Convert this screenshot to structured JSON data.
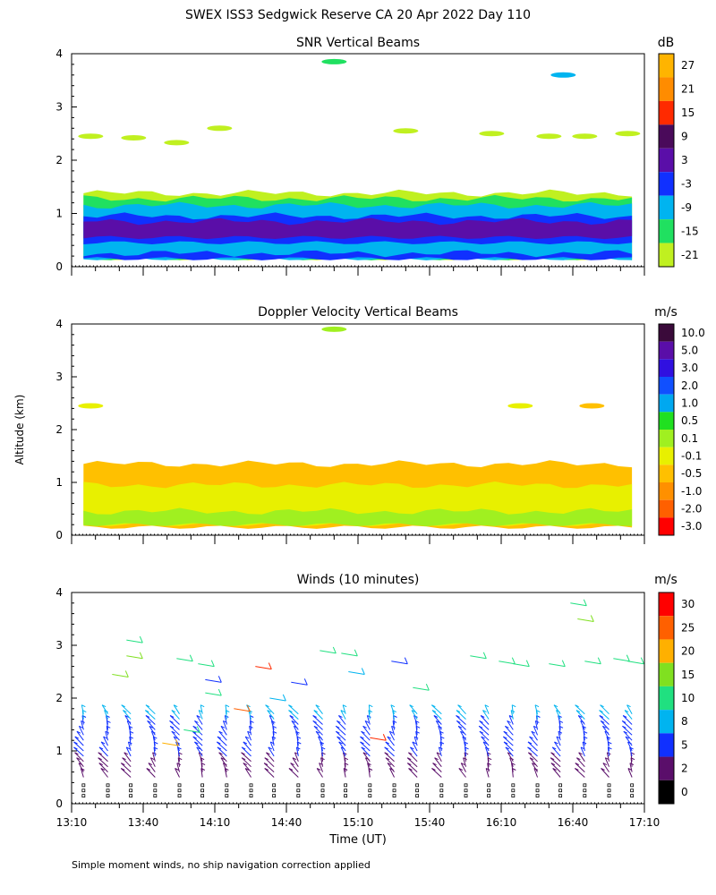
{
  "figure": {
    "title": "SWEX ISS3 Sedgwick Reserve CA  20 Apr 2022 Day 110",
    "ylabel": "Altitude (km)",
    "xlabel": "Time (UT)",
    "footnote": "Simple moment winds, no ship navigation correction applied"
  },
  "chart_data": [
    {
      "type": "heatmap",
      "title": "SNR Vertical Beams",
      "colorbar_unit": "dB",
      "colorbar_ticks": [
        "27",
        "21",
        "15",
        "9",
        "3",
        "-3",
        "-9",
        "-15",
        "-21"
      ],
      "colors": [
        "#ffb400",
        "#ff8c00",
        "#ff2a00",
        "#4a0a5a",
        "#5a0ea8",
        "#1030ff",
        "#00b4f0",
        "#20e060",
        "#c0f020"
      ],
      "xlim": [
        13.1667,
        17.1667
      ],
      "ylim": [
        0,
        4
      ],
      "yticks": [
        0,
        1,
        2,
        3,
        4
      ],
      "xticklabels": [
        "13:10",
        "13:40",
        "14:10",
        "14:40",
        "15:10",
        "15:40",
        "16:10",
        "16:40",
        "17:10"
      ],
      "bands": [
        {
          "y0": 0.15,
          "y1": 1.38,
          "color": "#c0f020"
        },
        {
          "y0": 0.15,
          "y1": 1.28,
          "color": "#20e060"
        },
        {
          "y0": 0.15,
          "y1": 1.15,
          "color": "#00b4f0"
        },
        {
          "y0": 0.45,
          "y1": 0.95,
          "color": "#1030ff"
        },
        {
          "y0": 0.55,
          "y1": 0.85,
          "color": "#5a0ea8"
        },
        {
          "y0": 0.15,
          "y1": 0.25,
          "color": "#1030ff"
        }
      ],
      "patches": [
        {
          "t": 13.3,
          "y": 2.45,
          "color": "#c0f020"
        },
        {
          "t": 13.6,
          "y": 2.42,
          "color": "#c0f020"
        },
        {
          "t": 13.9,
          "y": 2.33,
          "color": "#c0f020"
        },
        {
          "t": 14.2,
          "y": 2.6,
          "color": "#c0f020"
        },
        {
          "t": 15.0,
          "y": 3.85,
          "color": "#20e060"
        },
        {
          "t": 15.5,
          "y": 2.55,
          "color": "#c0f020"
        },
        {
          "t": 16.1,
          "y": 2.5,
          "color": "#c0f020"
        },
        {
          "t": 16.5,
          "y": 2.45,
          "color": "#c0f020"
        },
        {
          "t": 16.75,
          "y": 2.45,
          "color": "#c0f020"
        },
        {
          "t": 17.05,
          "y": 2.5,
          "color": "#c0f020"
        },
        {
          "t": 16.6,
          "y": 3.6,
          "color": "#00b4f0"
        }
      ]
    },
    {
      "type": "heatmap",
      "title": "Doppler Velocity Vertical Beams",
      "colorbar_unit": "m/s",
      "colorbar_ticks": [
        "10.0",
        "5.0",
        "3.0",
        "2.0",
        "1.0",
        "0.5",
        "0.1",
        "-0.1",
        "-0.5",
        "-1.0",
        "-2.0",
        "-3.0"
      ],
      "colors": [
        "#3a0a3a",
        "#5a0ea8",
        "#3010e0",
        "#1050ff",
        "#00a8f0",
        "#20e020",
        "#a0f020",
        "#e8f000",
        "#ffc000",
        "#ff9000",
        "#ff6000",
        "#ff0000"
      ],
      "xlim": [
        13.1667,
        17.1667
      ],
      "ylim": [
        0,
        4
      ],
      "yticks": [
        0,
        1,
        2,
        3,
        4
      ],
      "xticklabels": [
        "13:10",
        "13:40",
        "14:10",
        "14:40",
        "15:10",
        "15:40",
        "16:10",
        "16:40",
        "17:10"
      ],
      "bands": [
        {
          "y0": 0.15,
          "y1": 1.35,
          "color": "#ffc000"
        },
        {
          "y0": 0.2,
          "y1": 0.95,
          "color": "#e8f000"
        },
        {
          "y0": 0.2,
          "y1": 0.45,
          "color": "#a0f020"
        }
      ],
      "patches": [
        {
          "t": 13.3,
          "y": 2.45,
          "color": "#e8f000"
        },
        {
          "t": 15.0,
          "y": 3.9,
          "color": "#a0f020"
        },
        {
          "t": 16.3,
          "y": 2.45,
          "color": "#e8f000"
        },
        {
          "t": 16.8,
          "y": 2.45,
          "color": "#ffc000"
        }
      ]
    },
    {
      "type": "scatter",
      "title": "Winds (10 minutes)",
      "colorbar_unit": "m/s",
      "colorbar_ticks": [
        "30",
        "25",
        "20",
        "15",
        "10",
        "8",
        "5",
        "2",
        "0"
      ],
      "colors": [
        "#ff0000",
        "#ff6000",
        "#ffb000",
        "#80e020",
        "#20e080",
        "#00b4f0",
        "#1030ff",
        "#5a0e6a",
        "#000000"
      ],
      "xlim": [
        13.1667,
        17.1667
      ],
      "ylim": [
        0,
        4
      ],
      "yticks": [
        0,
        1,
        2,
        3,
        4
      ],
      "xticklabels": [
        "13:10",
        "13:40",
        "14:10",
        "14:40",
        "15:10",
        "15:40",
        "16:10",
        "16:40",
        "17:10"
      ],
      "profile_times": [
        13.25,
        13.42,
        13.58,
        13.75,
        13.92,
        14.08,
        14.25,
        14.42,
        14.58,
        14.75,
        14.92,
        15.08,
        15.25,
        15.42,
        15.58,
        15.75,
        15.92,
        16.08,
        16.25,
        16.42,
        16.58,
        16.75,
        16.92,
        17.08
      ],
      "upper_barbs": [
        {
          "t": 13.55,
          "y": 3.1,
          "color": "#20e080"
        },
        {
          "t": 13.45,
          "y": 2.45,
          "color": "#80e020"
        },
        {
          "t": 13.55,
          "y": 2.8,
          "color": "#80e020"
        },
        {
          "t": 13.9,
          "y": 2.75,
          "color": "#20e080"
        },
        {
          "t": 14.05,
          "y": 2.65,
          "color": "#20e080"
        },
        {
          "t": 14.1,
          "y": 2.35,
          "color": "#1030ff"
        },
        {
          "t": 14.1,
          "y": 2.1,
          "color": "#20e080"
        },
        {
          "t": 14.45,
          "y": 2.6,
          "color": "#ff2a00"
        },
        {
          "t": 14.7,
          "y": 2.3,
          "color": "#1030ff"
        },
        {
          "t": 14.55,
          "y": 2.0,
          "color": "#00b4f0"
        },
        {
          "t": 14.9,
          "y": 2.9,
          "color": "#20e080"
        },
        {
          "t": 15.05,
          "y": 2.85,
          "color": "#20e080"
        },
        {
          "t": 15.1,
          "y": 2.5,
          "color": "#00b4f0"
        },
        {
          "t": 15.4,
          "y": 2.7,
          "color": "#1030ff"
        },
        {
          "t": 15.55,
          "y": 2.2,
          "color": "#20e080"
        },
        {
          "t": 15.95,
          "y": 2.8,
          "color": "#20e080"
        },
        {
          "t": 16.15,
          "y": 2.7,
          "color": "#20e080"
        },
        {
          "t": 16.25,
          "y": 2.65,
          "color": "#20e080"
        },
        {
          "t": 16.5,
          "y": 2.65,
          "color": "#20e080"
        },
        {
          "t": 16.75,
          "y": 2.7,
          "color": "#20e080"
        },
        {
          "t": 16.95,
          "y": 2.75,
          "color": "#20e080"
        },
        {
          "t": 17.05,
          "y": 2.7,
          "color": "#20e080"
        },
        {
          "t": 16.65,
          "y": 3.8,
          "color": "#20e080"
        },
        {
          "t": 16.7,
          "y": 3.5,
          "color": "#80e020"
        },
        {
          "t": 15.25,
          "y": 1.25,
          "color": "#ff2a00"
        },
        {
          "t": 14.3,
          "y": 1.8,
          "color": "#ff6000"
        },
        {
          "t": 13.8,
          "y": 1.15,
          "color": "#ffb000"
        },
        {
          "t": 13.95,
          "y": 1.4,
          "color": "#20e080"
        }
      ]
    }
  ]
}
